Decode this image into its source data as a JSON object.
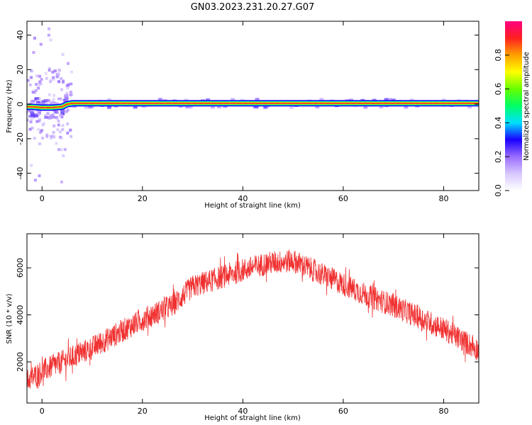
{
  "title": "GN03.2023.231.20.27.G07",
  "chart_data": [
    {
      "type": "heatmap",
      "xlabel": "Height of straight line (km)",
      "ylabel": "Frequency (Hz)",
      "xlim": [
        -3,
        87
      ],
      "ylim": [
        -50,
        48
      ],
      "x_ticks": [
        0,
        20,
        40,
        60,
        80
      ],
      "y_ticks": [
        -40,
        -20,
        0,
        20,
        40
      ],
      "ridge": {
        "x": [
          -2,
          0,
          2,
          4,
          5,
          6,
          87
        ],
        "frequency": [
          -1.5,
          -2.0,
          -2.0,
          -1.5,
          0.0,
          0.5,
          0.5
        ]
      },
      "colorbar": {
        "label": "Normalized spectral amplitude",
        "range": [
          0,
          1
        ],
        "ticks": [
          0.0,
          0.2,
          0.4,
          0.6,
          0.8
        ],
        "colormap": [
          "#ffffff",
          "#d8c8ff",
          "#9a6cff",
          "#1a00ff",
          "#00e0ff",
          "#00ff66",
          "#66ff00",
          "#ffff00",
          "#ffa000",
          "#ff2020",
          "#ff0080"
        ]
      }
    },
    {
      "type": "line",
      "xlabel": "Height of straight line (km)",
      "ylabel": "SNR (10 * v/v)",
      "xlim": [
        -3,
        87
      ],
      "ylim": [
        250,
        7450
      ],
      "x_ticks": [
        0,
        20,
        40,
        60,
        80
      ],
      "y_ticks": [
        2000,
        4000,
        6000
      ],
      "color": "#f03030",
      "series": [
        {
          "trend_x": [
            -3,
            0,
            10,
            20,
            26,
            30,
            40,
            45,
            50,
            55,
            60,
            65,
            70,
            80,
            87
          ],
          "trend_y": [
            1200,
            1600,
            2600,
            3800,
            4400,
            5200,
            5900,
            6200,
            6300,
            5800,
            5300,
            4800,
            4400,
            3400,
            2500
          ],
          "noise_amplitude": 500
        }
      ]
    }
  ]
}
